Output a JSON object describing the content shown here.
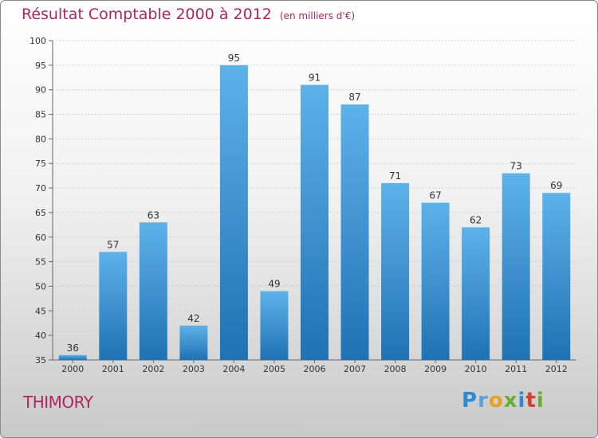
{
  "header": {
    "title": "Résultat Comptable 2000 à 2012",
    "unit": "(en milliers d'€)"
  },
  "commune": "THIMORY",
  "logo": {
    "letters": [
      {
        "char": "P",
        "color": "#2e8ad1"
      },
      {
        "char": "r",
        "color": "#5aa2d9"
      },
      {
        "char": "o",
        "color": "#e8a21a"
      },
      {
        "char": "x",
        "color": "#6aaf2c"
      },
      {
        "char": "i",
        "color": "#2e8ad1"
      },
      {
        "char": "t",
        "color": "#d93b2c"
      },
      {
        "char": "i",
        "color": "#6aaf2c"
      }
    ]
  },
  "chart_data": {
    "type": "bar",
    "title": "Résultat Comptable 2000 à 2012",
    "xlabel": "",
    "ylabel": "",
    "categories": [
      "2000",
      "2001",
      "2002",
      "2003",
      "2004",
      "2005",
      "2006",
      "2007",
      "2008",
      "2009",
      "2010",
      "2011",
      "2012"
    ],
    "values": [
      36,
      57,
      63,
      42,
      95,
      49,
      91,
      87,
      71,
      67,
      62,
      73,
      69
    ],
    "ylim": [
      35,
      100
    ],
    "yticks": [
      35,
      40,
      45,
      50,
      55,
      60,
      65,
      70,
      75,
      80,
      85,
      90,
      95,
      100
    ],
    "grid": true,
    "bar_color": "#3a8fd4"
  }
}
